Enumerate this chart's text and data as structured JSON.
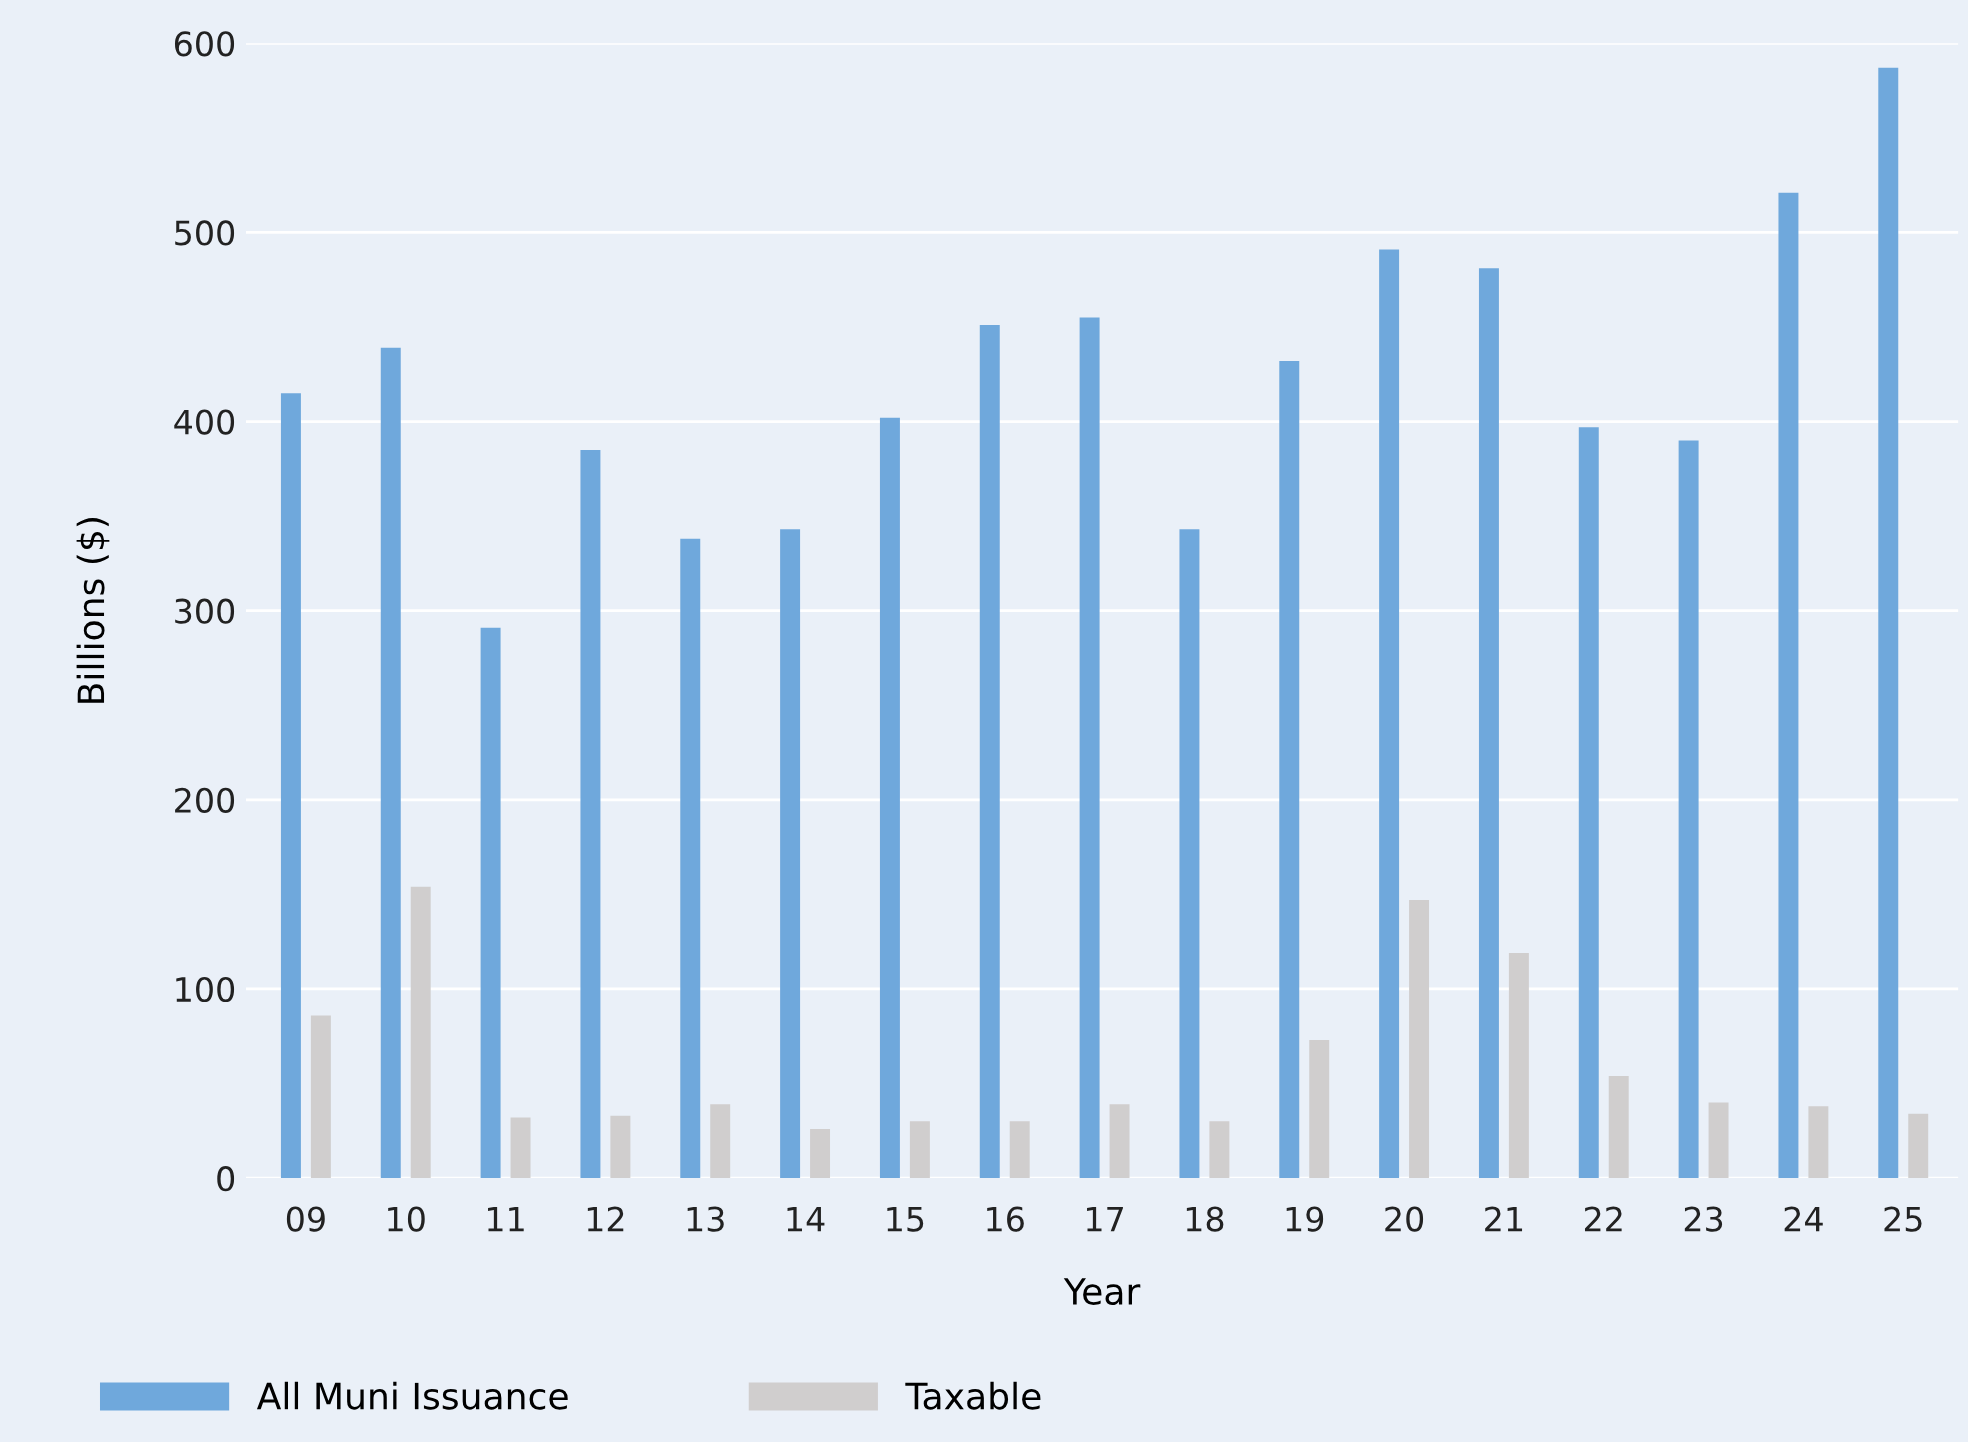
{
  "chart_data": {
    "type": "bar",
    "xlabel": "Year",
    "ylabel": "Billions ($)",
    "categories": [
      "09",
      "10",
      "11",
      "12",
      "13",
      "14",
      "15",
      "16",
      "17",
      "18",
      "19",
      "20",
      "21",
      "22",
      "23",
      "24",
      "25"
    ],
    "series": [
      {
        "name": "All Muni Issuance",
        "color": "#6fa8dc",
        "values": [
          415,
          439,
          291,
          385,
          338,
          343,
          402,
          451,
          455,
          343,
          432,
          491,
          481,
          397,
          390,
          521,
          587
        ]
      },
      {
        "name": "Taxable",
        "color": "#d0cece",
        "values": [
          86,
          154,
          32,
          33,
          39,
          26,
          30,
          30,
          39,
          30,
          73,
          147,
          119,
          54,
          40,
          38,
          34
        ]
      }
    ],
    "ylim": [
      0,
      600
    ],
    "yticks": [
      0,
      100,
      200,
      300,
      400,
      500,
      600
    ],
    "grid": "y",
    "legend": "bottom left"
  }
}
